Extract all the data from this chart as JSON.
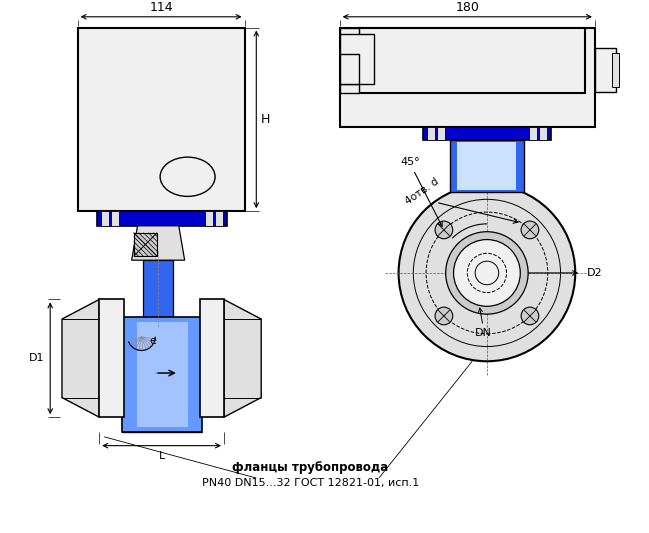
{
  "bg_color": "#ffffff",
  "lc": "#000000",
  "blue1": "#0000cc",
  "blue2": "#3366ee",
  "blue3": "#6699ff",
  "blue4": "#99bbff",
  "blue_light": "#cce0ff",
  "blue_hat": "#2255bb",
  "gray1": "#f0f0f0",
  "gray2": "#e0e0e0",
  "gray3": "#cccccc",
  "text_dim1": "114",
  "text_dim2": "180",
  "label_H": "H",
  "label_D1": "D1",
  "label_L": "L",
  "label_e": "e",
  "label_D2": "D2",
  "label_DN": "DN",
  "label_45": "45°",
  "label_4otv": "4отв. d",
  "label_flanczy": "фланцы трубопровода",
  "label_pn40": "PN40 DN15...32 ГОСТ 12821-01, исп.1"
}
